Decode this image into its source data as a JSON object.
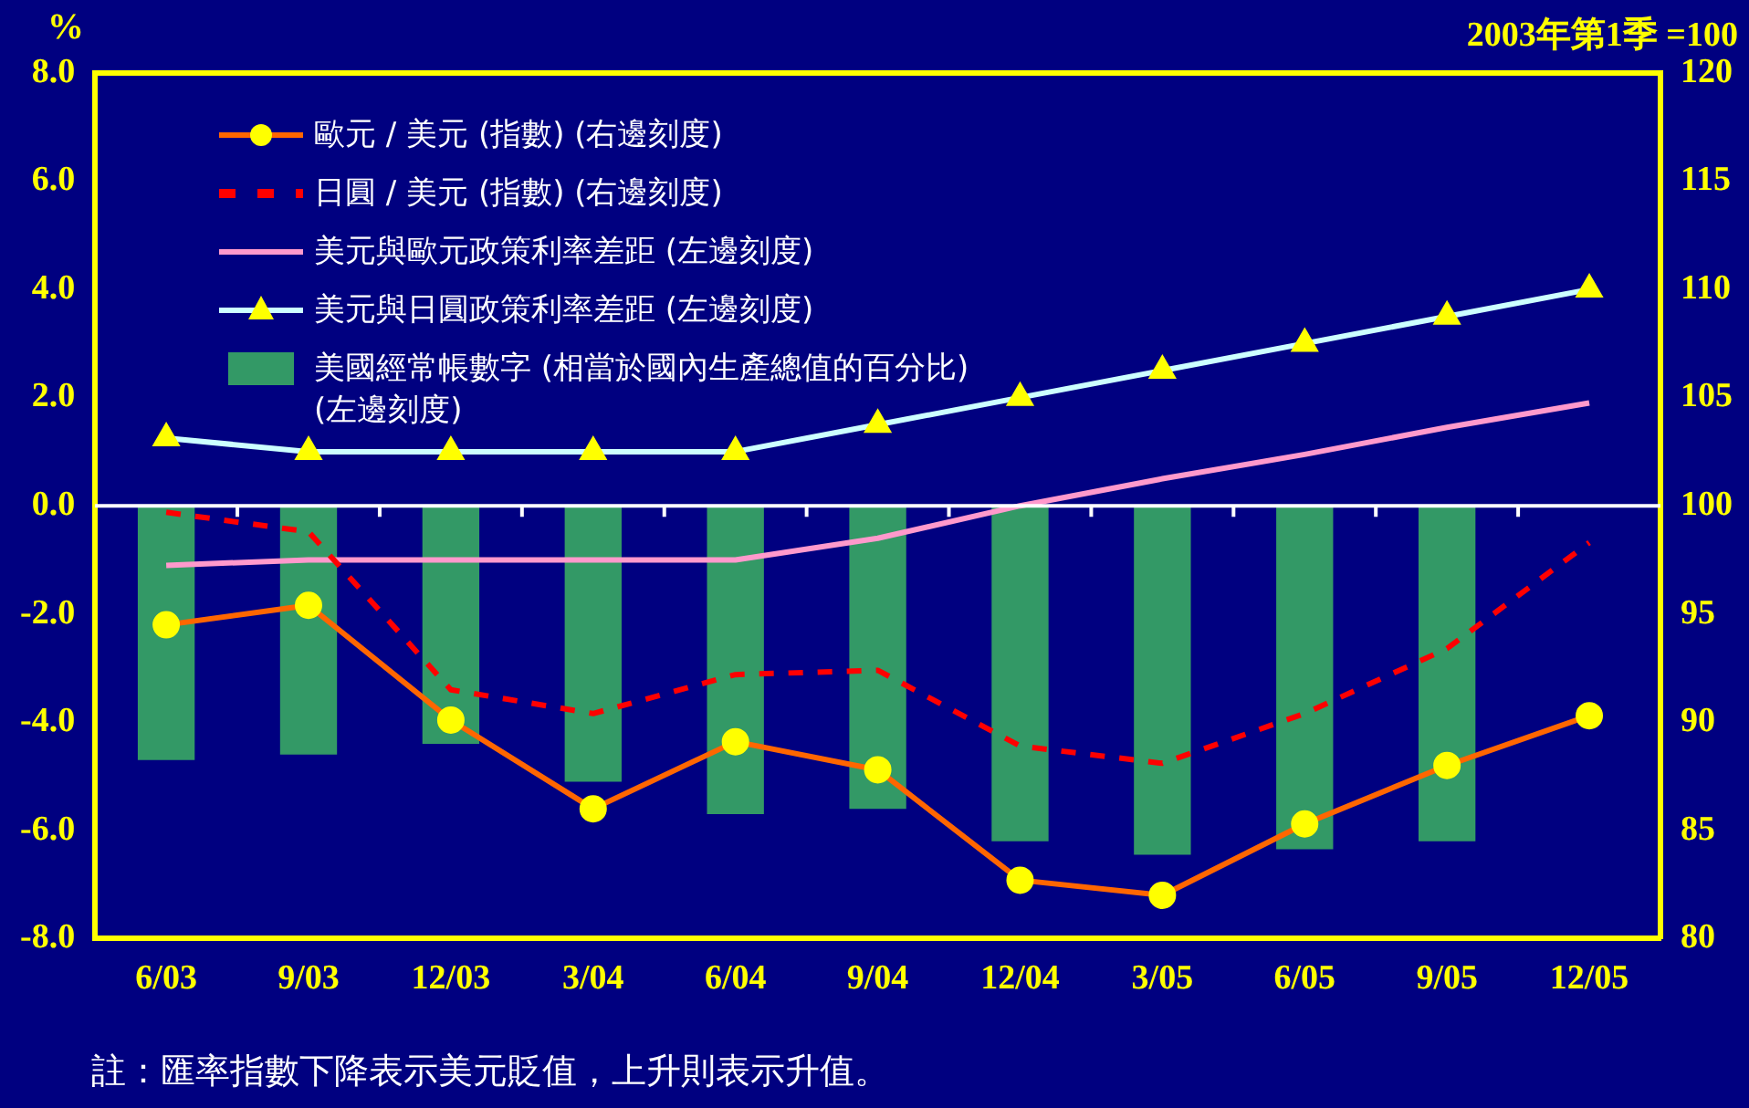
{
  "chart_data": {
    "type": "bar",
    "ylabel": "%",
    "y2label": "2003年第1季 =100",
    "categories": [
      "6/03",
      "9/03",
      "12/03",
      "3/04",
      "6/04",
      "9/04",
      "12/04",
      "3/05",
      "6/05",
      "9/05",
      "12/05"
    ],
    "series": [
      {
        "name": "歐元 / 美元 (指數) (右邊刻度)",
        "type": "line",
        "axis": "y2",
        "color": "#ff6600",
        "marker": "circle",
        "values": [
          94.5,
          95.4,
          90.1,
          86.0,
          89.1,
          87.8,
          82.7,
          82.0,
          85.3,
          88.0,
          90.3
        ]
      },
      {
        "name": "日圓 / 美元 (指數) (右邊刻度)",
        "type": "line",
        "axis": "y2",
        "color": "#ff0000",
        "marker": "none",
        "line_style": "dashed",
        "values": [
          99.7,
          98.8,
          91.5,
          90.4,
          92.2,
          92.4,
          88.9,
          88.1,
          90.4,
          93.4,
          98.3
        ]
      },
      {
        "name": "美元與歐元政策利率差距 (左邊刻度)",
        "type": "line",
        "color": "#ff99cc",
        "marker": "none",
        "values": [
          -1.1,
          -1.0,
          -1.0,
          -1.0,
          -1.0,
          -0.6,
          0.0,
          0.5,
          0.95,
          1.45,
          1.9
        ]
      },
      {
        "name": "美元與日圓政策利率差距 (左邊刻度)",
        "type": "line",
        "color": "#ccffff",
        "marker": "triangle",
        "values": [
          1.25,
          1.0,
          1.0,
          1.0,
          1.0,
          1.5,
          2.0,
          2.5,
          3.0,
          3.5,
          4.0
        ]
      },
      {
        "name": "美國經常帳數字 (相當於國內生產總值的百分比) (左邊刻度)",
        "color": "#339966",
        "values": [
          -4.7,
          -4.6,
          -4.4,
          -5.1,
          -5.7,
          -5.6,
          -6.2,
          -6.45,
          -6.35,
          -6.2,
          null
        ]
      }
    ],
    "ylim": [
      -8,
      8
    ],
    "yticks": [
      {
        "value": -8,
        "label": "-8.0"
      },
      {
        "value": -6,
        "label": "-6.0"
      },
      {
        "value": -4,
        "label": "-4.0"
      },
      {
        "value": -2,
        "label": "-2.0"
      },
      {
        "value": 0,
        "label": "0.0"
      },
      {
        "value": 2,
        "label": "2.0"
      },
      {
        "value": 4,
        "label": "4.0"
      },
      {
        "value": 6,
        "label": "6.0"
      },
      {
        "value": 8,
        "label": "8.0"
      }
    ],
    "y2lim": [
      80,
      120
    ],
    "y2ticks": [
      80,
      85,
      90,
      95,
      100,
      105,
      110,
      115,
      120
    ],
    "legend": "top left",
    "grid": false,
    "ref_lines": [
      {
        "axis": "y",
        "value": 0,
        "color": "#ffffff"
      }
    ],
    "annotations": [
      "註：匯率指數下降表示美元貶值，上升則表示升值。"
    ]
  }
}
